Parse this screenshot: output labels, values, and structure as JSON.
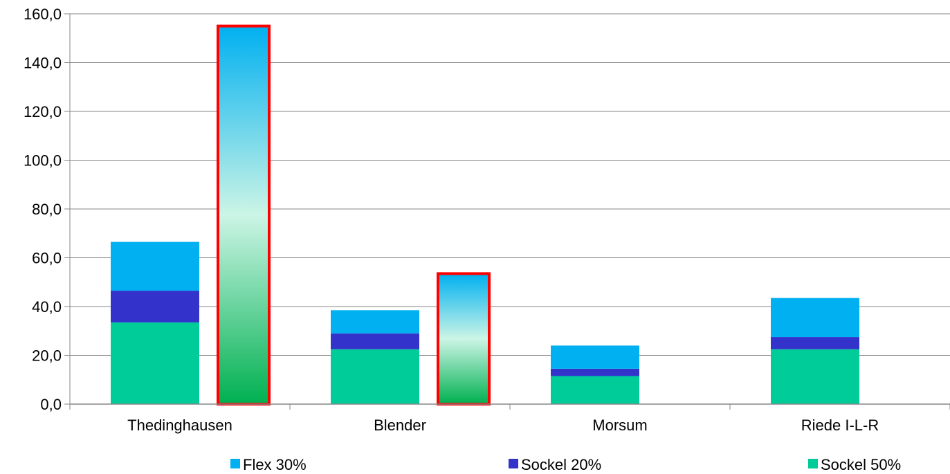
{
  "chart_data": {
    "type": "bar",
    "stacked": true,
    "categories": [
      "Thedinghausen",
      "Blender",
      "Morsum",
      "Riede I-L-R"
    ],
    "series": [
      {
        "name": "Sockel 50%",
        "color": "#00CC99",
        "values": [
          33.5,
          22.5,
          11.5,
          22.5
        ]
      },
      {
        "name": "Sockel 20%",
        "color": "#3333CC",
        "values": [
          13.0,
          6.5,
          3.0,
          5.0
        ]
      },
      {
        "name": "Flex 30%",
        "color": "#00B0F0",
        "values": [
          20.0,
          9.5,
          9.5,
          16.0
        ]
      }
    ],
    "highlighted_totals": [
      {
        "category": "Thedinghausen",
        "value": 155.0,
        "gradient_colors": [
          "#00B050",
          "#CCF5E6",
          "#00B0F0"
        ],
        "border_color": "#FF0000"
      },
      {
        "category": "Blender",
        "value": 53.5,
        "gradient_colors": [
          "#00B050",
          "#CCF5E6",
          "#00B0F0"
        ],
        "border_color": "#FF0000"
      }
    ],
    "ylim": [
      0,
      160
    ],
    "yticks": [
      "0,0",
      "20,0",
      "40,0",
      "60,0",
      "80,0",
      "100,0",
      "120,0",
      "140,0",
      "160,0"
    ],
    "grid": true,
    "legend_placement": "bottom",
    "legend": [
      "Flex 30%",
      "Sockel 20%",
      "Sockel 50%"
    ],
    "title": "",
    "xlabel": "",
    "ylabel": ""
  }
}
